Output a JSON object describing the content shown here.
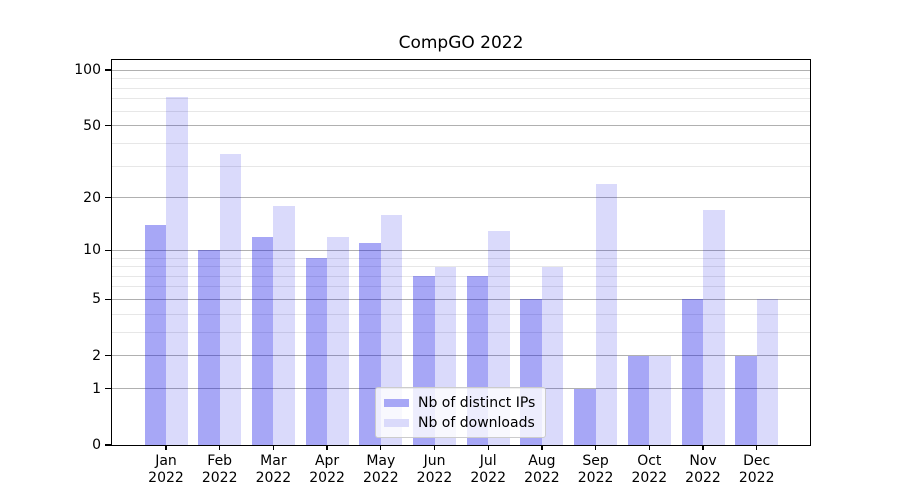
{
  "title": "CompGO 2022",
  "chart_data": {
    "type": "bar",
    "title": "CompGO 2022",
    "categories": [
      "Jan",
      "Feb",
      "Mar",
      "Apr",
      "May",
      "Jun",
      "Jul",
      "Aug",
      "Sep",
      "Oct",
      "Nov",
      "Dec"
    ],
    "category_year": "2022",
    "series": [
      {
        "name": "Nb of distinct IPs",
        "color": "rgba(10,10,230,0.36)",
        "solid_color": "#a7a7f6",
        "values": [
          14,
          10,
          12,
          9,
          11,
          7,
          7,
          5,
          1,
          2,
          5,
          2
        ]
      },
      {
        "name": "Nb of downloads",
        "color": "rgba(10,10,230,0.15)",
        "solid_color": "#dadafb",
        "values": [
          72,
          35,
          18,
          12,
          16,
          8,
          13,
          8,
          24,
          2,
          17,
          5
        ]
      }
    ],
    "xlabel": "",
    "ylabel": "",
    "yscale": "log1p",
    "ylim": [
      0,
      115
    ],
    "yticks": [
      0,
      1,
      2,
      5,
      10,
      20,
      50,
      100
    ],
    "minor_yticks": [
      3,
      4,
      6,
      7,
      8,
      9,
      30,
      40,
      60,
      70,
      80,
      90
    ],
    "grid": "on",
    "legend_position": "lower center"
  },
  "colors": {
    "major_grid": "#b0b0b0",
    "minor_grid": "#e7e7e7",
    "axis": "#000000",
    "background": "#ffffff",
    "legend_border": "#cccccc"
  }
}
